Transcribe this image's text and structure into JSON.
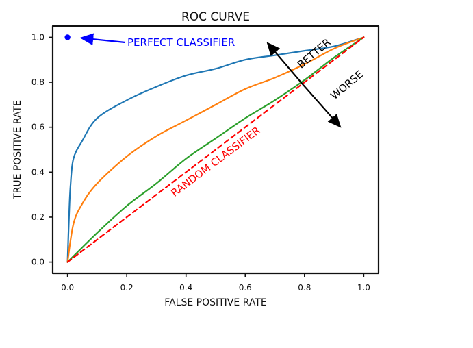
{
  "chart_data": {
    "type": "line",
    "title": "ROC CURVE",
    "xlabel": "FALSE POSITIVE RATE",
    "ylabel": "TRUE POSITIVE RATE",
    "xlim": [
      -0.05,
      1.05
    ],
    "ylim": [
      -0.05,
      1.05
    ],
    "xticks": [
      "0.0",
      "0.2",
      "0.4",
      "0.6",
      "0.8",
      "1.0"
    ],
    "yticks": [
      "0.0",
      "0.2",
      "0.4",
      "0.6",
      "0.8",
      "1.0"
    ],
    "grid": false,
    "series": [
      {
        "color": "#1f77b4",
        "x": [
          0.0,
          0.005,
          0.01,
          0.02,
          0.05,
          0.1,
          0.2,
          0.3,
          0.4,
          0.5,
          0.6,
          0.7,
          0.8,
          0.9,
          1.0
        ],
        "y": [
          0.0,
          0.2,
          0.34,
          0.46,
          0.54,
          0.64,
          0.72,
          0.78,
          0.83,
          0.86,
          0.9,
          0.92,
          0.94,
          0.96,
          1.0
        ]
      },
      {
        "color": "#ff7f0e",
        "x": [
          0.0,
          0.02,
          0.05,
          0.1,
          0.2,
          0.3,
          0.4,
          0.5,
          0.6,
          0.7,
          0.8,
          0.9,
          1.0
        ],
        "y": [
          0.0,
          0.17,
          0.26,
          0.35,
          0.47,
          0.56,
          0.63,
          0.7,
          0.77,
          0.82,
          0.88,
          0.95,
          1.0
        ]
      },
      {
        "color": "#2ca02c",
        "x": [
          0.0,
          0.1,
          0.2,
          0.3,
          0.4,
          0.5,
          0.6,
          0.7,
          0.8,
          0.9,
          1.0
        ],
        "y": [
          0.0,
          0.13,
          0.25,
          0.35,
          0.46,
          0.55,
          0.64,
          0.72,
          0.81,
          0.91,
          1.0
        ]
      },
      {
        "color": "#ff0000",
        "dashed": true,
        "x": [
          0.0,
          1.0
        ],
        "y": [
          0.0,
          1.0
        ]
      }
    ],
    "points": [
      {
        "x": 0.0,
        "y": 1.0,
        "color": "#0000ff"
      }
    ],
    "annotations": {
      "perfect": "PERFECT CLASSIFIER",
      "random": "RANDOM CLASSIFIER",
      "better": "BETTER",
      "worse": "WORSE"
    },
    "colors": {
      "perfect": "#0000ff",
      "random": "#ff0000",
      "better_worse": "#000000"
    }
  }
}
